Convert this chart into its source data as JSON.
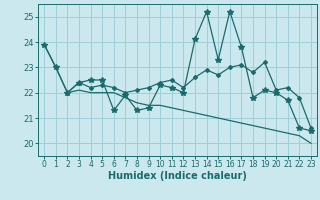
{
  "xlabel": "Humidex (Indice chaleur)",
  "bg_color": "#cce8ef",
  "grid_color": "#9fcfda",
  "line_color": "#1a6b6b",
  "xlim": [
    -0.5,
    23.5
  ],
  "ylim": [
    19.5,
    25.5
  ],
  "yticks": [
    20,
    21,
    22,
    23,
    24,
    25
  ],
  "xticks": [
    0,
    1,
    2,
    3,
    4,
    5,
    6,
    7,
    8,
    9,
    10,
    11,
    12,
    13,
    14,
    15,
    16,
    17,
    18,
    19,
    20,
    21,
    22,
    23
  ],
  "series1_x": [
    0,
    1,
    2,
    3,
    4,
    5,
    6,
    7,
    8,
    9,
    10,
    11,
    12,
    13,
    14,
    15,
    16,
    17,
    18,
    19,
    20,
    21,
    22,
    23
  ],
  "series1_y": [
    23.9,
    23.0,
    22.0,
    22.4,
    22.5,
    22.5,
    21.3,
    21.9,
    21.3,
    21.4,
    22.3,
    22.2,
    22.0,
    24.1,
    25.2,
    23.3,
    25.2,
    23.8,
    21.8,
    22.1,
    22.0,
    21.7,
    20.6,
    20.5
  ],
  "series2_x": [
    2,
    3,
    4,
    5,
    6,
    7,
    8,
    9,
    10,
    11,
    12,
    13,
    14,
    15,
    16,
    17,
    18,
    19,
    20,
    21,
    22,
    23
  ],
  "series2_y": [
    22.0,
    22.4,
    22.2,
    22.3,
    22.2,
    22.0,
    22.1,
    22.2,
    22.4,
    22.5,
    22.2,
    22.6,
    22.9,
    22.7,
    23.0,
    23.1,
    22.8,
    23.2,
    22.1,
    22.2,
    21.8,
    20.6
  ],
  "series3_x": [
    0,
    1,
    2,
    3,
    4,
    5,
    6,
    7,
    8,
    9,
    10,
    11,
    12,
    13,
    14,
    15,
    16,
    17,
    18,
    19,
    20,
    21,
    22,
    23
  ],
  "series3_y": [
    23.9,
    23.0,
    22.0,
    22.1,
    22.0,
    22.0,
    22.0,
    21.8,
    21.6,
    21.5,
    21.5,
    21.4,
    21.3,
    21.2,
    21.1,
    21.0,
    20.9,
    20.8,
    20.7,
    20.6,
    20.5,
    20.4,
    20.3,
    20.0
  ]
}
